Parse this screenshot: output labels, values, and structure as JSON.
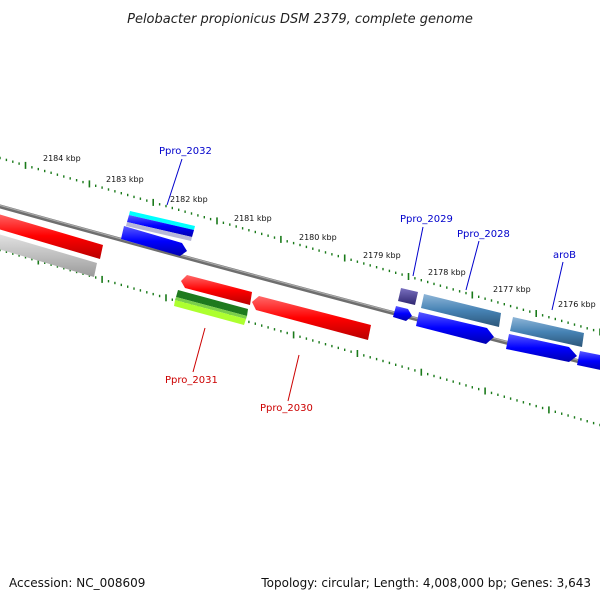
{
  "title": "Pelobacter propionicus DSM 2379, complete genome",
  "footer": {
    "accession": "Accession: NC_008609",
    "summary": "Topology: circular; Length: 4,008,000 bp; Genes: 3,643"
  },
  "ticks": [
    "2184 kbp",
    "2183 kbp",
    "2182 kbp",
    "2181 kbp",
    "2180 kbp",
    "2179 kbp",
    "2178 kbp",
    "2177 kbp",
    "2176 kbp"
  ],
  "labels": {
    "ppro_2032": "Ppro_2032",
    "ppro_2029": "Ppro_2029",
    "ppro_2028": "Ppro_2028",
    "arob": "aroB",
    "ppro_2031": "Ppro_2031",
    "ppro_2030": "Ppro_2030"
  },
  "colors": {
    "forward_label": "#0000cc",
    "reverse_label": "#cc0000",
    "backbone": "#808080",
    "tick": "#1a7a1a",
    "gene_blue": "#0000ff",
    "gene_red": "#ff0000",
    "gene_steel": "#4682b4",
    "gene_cyan": "#00ffff",
    "gene_slate": "#483d8b",
    "gene_green": "#228b22",
    "gene_lime": "#adff2f",
    "gene_grey": "#c0c0c0"
  }
}
